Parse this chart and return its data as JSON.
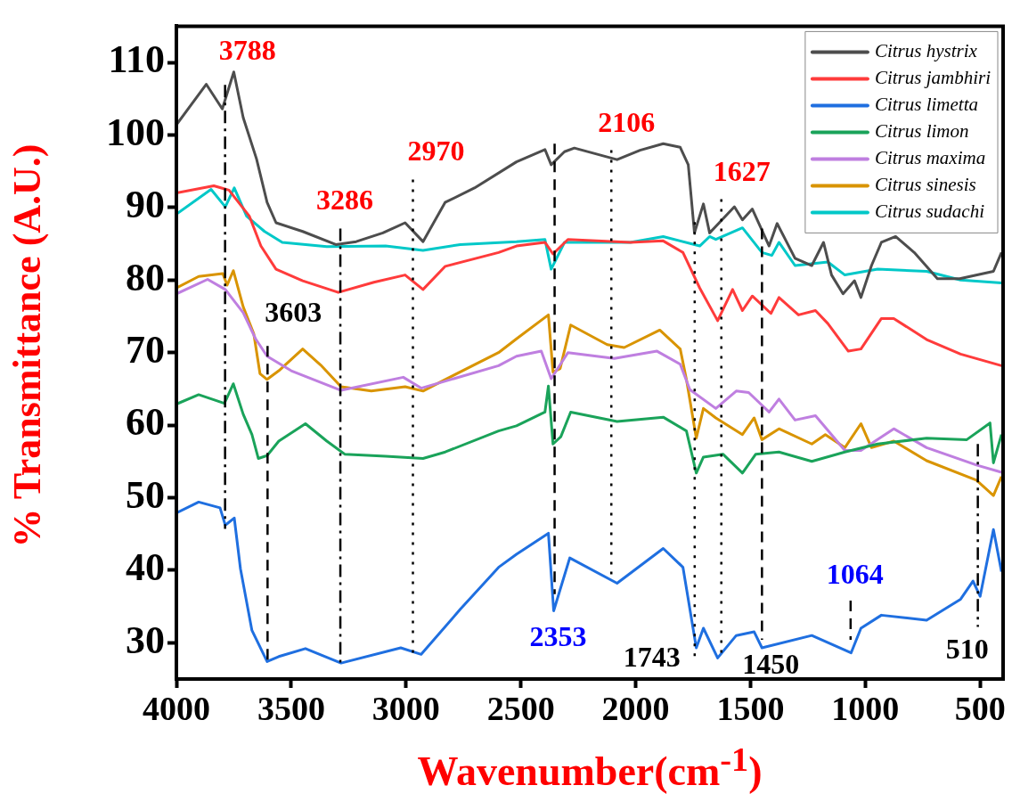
{
  "chart_data": {
    "type": "line",
    "xlabel": "Wavenumber(cm$^{-1}$)",
    "ylabel": "% Transmittance (A.U.)",
    "xlim": [
      4000,
      400
    ],
    "xticks": [
      4000,
      3500,
      3000,
      2500,
      2000,
      1500,
      1000,
      500
    ],
    "ylim": [
      25,
      115
    ],
    "yticks": [
      30,
      40,
      50,
      60,
      70,
      80,
      90,
      100,
      110
    ],
    "grid": false,
    "legend": "top right",
    "marker": "none",
    "line_style": "solid",
    "series": [
      {
        "name": "Citrus hystrix",
        "color": "#4d4d4d",
        "x": [
          4000,
          3870,
          3800,
          3750,
          3709,
          3651,
          3605,
          3566,
          3450,
          3306,
          3217,
          3101,
          3004,
          2926,
          2830,
          2702,
          2519,
          2395,
          2368,
          2310,
          2267,
          2081,
          1981,
          1880,
          1806,
          1771,
          1744,
          1705,
          1678,
          1570,
          1535,
          1492,
          1419,
          1384,
          1306,
          1233,
          1182,
          1147,
          1097,
          1047,
          1019,
          973,
          930,
          868,
          787,
          686,
          589,
          442,
          407
        ],
        "values": [
          101.4,
          107,
          103.6,
          108.7,
          102.4,
          96.7,
          90.7,
          87.9,
          86.7,
          84.9,
          85.3,
          86.5,
          87.9,
          85.3,
          90.7,
          92.7,
          96.3,
          98.0,
          95.9,
          97.7,
          98.2,
          96.6,
          97.9,
          98.8,
          98.3,
          95.9,
          86.5,
          90.5,
          86.5,
          90.1,
          88.3,
          89.8,
          84.7,
          87.8,
          83.0,
          82.0,
          85.2,
          80.7,
          78.1,
          79.9,
          77.6,
          82.0,
          85.2,
          86.0,
          83.8,
          80.2,
          80.2,
          81.2,
          83.8
        ]
      },
      {
        "name": "Citrus jambhiri",
        "color": "#ff3b3b",
        "x": [
          4000,
          3837,
          3771,
          3682,
          3632,
          3566,
          3450,
          3295,
          3140,
          3004,
          2926,
          2829,
          2597,
          2519,
          2395,
          2360,
          2295,
          2023,
          1880,
          1794,
          1721,
          1643,
          1578,
          1535,
          1492,
          1411,
          1376,
          1291,
          1217,
          1163,
          1074,
          1019,
          930,
          876,
          733,
          585,
          407
        ],
        "values": [
          92,
          93.0,
          92.4,
          88.8,
          84.7,
          81.5,
          79.9,
          78.3,
          79.7,
          80.7,
          78.7,
          81.9,
          83.8,
          84.7,
          85.2,
          83.6,
          85.6,
          85.2,
          85.4,
          83.8,
          78.9,
          74.4,
          78.7,
          75.8,
          77.8,
          75.4,
          77.6,
          75.2,
          75.8,
          74.0,
          70.2,
          70.5,
          74.7,
          74.7,
          71.8,
          69.8,
          68.2
        ]
      },
      {
        "name": "Citrus limetta",
        "color": "#1f6fe0",
        "x": [
          4000,
          3903,
          3810,
          3787,
          3748,
          3721,
          3671,
          3605,
          3554,
          3438,
          3283,
          3023,
          2934,
          2764,
          2597,
          2519,
          2380,
          2357,
          2287,
          2081,
          1880,
          1794,
          1736,
          1705,
          1643,
          1562,
          1484,
          1450,
          1233,
          1062,
          1019,
          930,
          733,
          585,
          531,
          500,
          442,
          407
        ],
        "values": [
          47.9,
          49.4,
          48.6,
          46.2,
          47.2,
          40.2,
          31.7,
          27.4,
          28.1,
          29.2,
          27.2,
          29.3,
          28.4,
          34.6,
          40.4,
          42.2,
          45.1,
          34.4,
          41.7,
          38.2,
          43.0,
          40.4,
          29.3,
          32.0,
          27.9,
          31.0,
          31.5,
          29.3,
          31.0,
          28.6,
          32.0,
          33.8,
          33.1,
          36.0,
          38.5,
          36.4,
          45.6,
          39.8
        ]
      },
      {
        "name": "Citrus limon",
        "color": "#1aa35a",
        "x": [
          4000,
          3903,
          3791,
          3752,
          3709,
          3671,
          3643,
          3605,
          3554,
          3438,
          3345,
          3267,
          3089,
          2926,
          2829,
          2597,
          2519,
          2395,
          2380,
          2360,
          2326,
          2283,
          2081,
          1880,
          1779,
          1736,
          1705,
          1620,
          1535,
          1477,
          1376,
          1233,
          1089,
          946,
          733,
          558,
          457,
          442,
          407
        ],
        "values": [
          62.9,
          64.2,
          63.0,
          65.7,
          61.5,
          58.7,
          55.4,
          55.8,
          57.8,
          60.2,
          57.8,
          56.0,
          55.7,
          55.4,
          56.3,
          59.2,
          59.9,
          61.8,
          65.4,
          57.4,
          58.4,
          61.8,
          60.5,
          61.1,
          59.2,
          53.4,
          55.6,
          56.0,
          53.4,
          56.0,
          56.3,
          55.0,
          56.3,
          57.4,
          58.2,
          58.0,
          60.3,
          54.8,
          58.7
        ]
      },
      {
        "name": "Citrus maxima",
        "color": "#bf7fe0",
        "x": [
          4000,
          3864,
          3787,
          3709,
          3655,
          3605,
          3500,
          3283,
          3012,
          2934,
          2597,
          2519,
          2411,
          2368,
          2295,
          2093,
          1907,
          1806,
          1764,
          1651,
          1562,
          1508,
          1419,
          1376,
          1306,
          1217,
          1089,
          1019,
          876,
          733,
          516,
          407
        ],
        "values": [
          78.1,
          80.1,
          78.7,
          75.5,
          71.9,
          69.5,
          67.5,
          64.8,
          66.6,
          65.1,
          68.2,
          69.5,
          70.2,
          66.4,
          70.0,
          69.2,
          70.2,
          68.4,
          64.9,
          62.3,
          64.7,
          64.5,
          61.8,
          63.6,
          60.7,
          61.3,
          56.5,
          56.5,
          59.5,
          56.9,
          54.5,
          53.5
        ]
      },
      {
        "name": "Citrus sinesis",
        "color": "#d99400",
        "x": [
          4000,
          3903,
          3798,
          3779,
          3752,
          3709,
          3663,
          3636,
          3605,
          3554,
          3450,
          3372,
          3283,
          3151,
          3004,
          2926,
          2829,
          2597,
          2519,
          2380,
          2360,
          2329,
          2283,
          2124,
          2050,
          1895,
          1806,
          1779,
          1736,
          1705,
          1651,
          1535,
          1484,
          1450,
          1376,
          1233,
          1174,
          1089,
          1019,
          973,
          876,
          733,
          516,
          442,
          407
        ],
        "values": [
          78.9,
          80.5,
          80.9,
          79.3,
          81.3,
          76.3,
          72.6,
          67.1,
          66.3,
          67.5,
          70.5,
          68.3,
          65.3,
          64.7,
          65.3,
          64.7,
          66.3,
          70.0,
          71.9,
          75.2,
          67.3,
          67.8,
          73.8,
          71.1,
          70.7,
          73.1,
          70.5,
          66.3,
          58.2,
          62.3,
          61.0,
          58.7,
          61.0,
          58.0,
          59.5,
          57.4,
          58.7,
          56.9,
          60.2,
          56.9,
          57.8,
          55.1,
          52.4,
          50.3,
          52.9
        ]
      },
      {
        "name": "Citrus sudachi",
        "color": "#00c8c8",
        "x": [
          4000,
          3849,
          3787,
          3748,
          3694,
          3616,
          3539,
          3345,
          3089,
          2926,
          2764,
          2519,
          2395,
          2368,
          2310,
          2023,
          1880,
          1721,
          1678,
          1651,
          1535,
          1450,
          1407,
          1376,
          1306,
          1163,
          1089,
          946,
          733,
          585,
          407
        ],
        "values": [
          89.1,
          92.5,
          90.1,
          92.7,
          88.8,
          86.7,
          85.2,
          84.6,
          84.7,
          84.1,
          84.9,
          85.3,
          85.6,
          81.5,
          85.2,
          85.2,
          86.0,
          84.7,
          86.0,
          85.6,
          87.2,
          83.8,
          83.4,
          85.2,
          82.0,
          82.5,
          80.7,
          81.5,
          81.2,
          80.0,
          79.6
        ]
      }
    ],
    "ref_lines": [
      {
        "axis": "x",
        "value": 3788,
        "label": "3788",
        "line_style": "dashdot",
        "color": "#000000"
      },
      {
        "axis": "x",
        "value": 3603,
        "label": "3603",
        "line_style": "dashed",
        "color": "#000000"
      },
      {
        "axis": "x",
        "value": 3286,
        "label": "3286",
        "line_style": "dashdot",
        "color": "#000000"
      },
      {
        "axis": "x",
        "value": 2970,
        "label": "2970",
        "line_style": "dotted",
        "color": "#000000"
      },
      {
        "axis": "x",
        "value": 2353,
        "label": "2353",
        "line_style": "dashed",
        "color": "#000000"
      },
      {
        "axis": "x",
        "value": 2106,
        "label": "2106",
        "line_style": "dotted",
        "color": "#000000"
      },
      {
        "axis": "x",
        "value": 1743,
        "label": "1743",
        "line_style": "dotted",
        "color": "#000000"
      },
      {
        "axis": "x",
        "value": 1627,
        "label": "1627",
        "line_style": "dotted",
        "color": "#000000"
      },
      {
        "axis": "x",
        "value": 1450,
        "label": "1450",
        "line_style": "dashed",
        "color": "#000000"
      },
      {
        "axis": "x",
        "value": 1064,
        "label": "1064",
        "line_style": "dashed",
        "color": "#000000"
      },
      {
        "axis": "x",
        "value": 510,
        "label": "510",
        "line_style": "dashdot",
        "color": "#000000"
      }
    ]
  }
}
